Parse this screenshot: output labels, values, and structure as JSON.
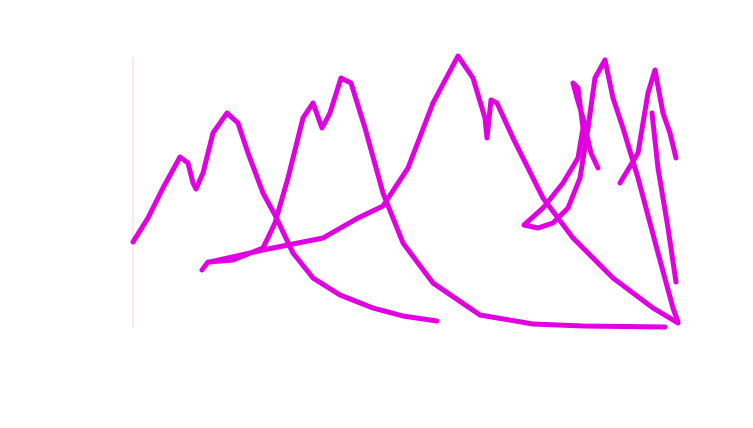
{
  "chart_data": {
    "type": "line",
    "color": "#e000e0",
    "xlim": [
      0,
      545
    ],
    "ylim": [
      0,
      280
    ],
    "x": [
      0,
      15,
      30,
      47,
      55,
      60,
      63,
      70,
      80,
      94,
      105,
      115,
      130,
      142,
      160,
      180,
      207,
      240,
      270,
      304,
      null,
      69,
      75,
      100,
      130,
      142,
      155,
      170,
      180,
      189,
      197,
      208,
      218,
      232,
      250,
      270,
      300,
      347,
      400,
      450,
      532,
      null,
      77,
      130,
      190,
      225,
      250,
      275,
      300,
      325,
      340,
      352,
      354,
      358,
      364,
      380,
      410,
      440,
      480,
      520,
      545,
      null,
      545,
      540,
      525,
      505,
      490,
      480,
      472,
      462,
      455,
      447,
      435,
      420,
      405,
      391,
      null,
      391,
      410,
      430,
      445,
      450,
      445,
      440,
      444,
      450,
      458,
      465,
      null,
      487,
      505,
      515,
      522,
      530,
      537,
      543,
      null,
      519,
      525,
      535,
      543
    ],
    "values": [
      86,
      110,
      140,
      171,
      165,
      145,
      139,
      155,
      195,
      215,
      205,
      175,
      135,
      113,
      75,
      50,
      33,
      20,
      12,
      7,
      null,
      58,
      66,
      68,
      80,
      105,
      150,
      210,
      225,
      200,
      215,
      250,
      245,
      200,
      135,
      85,
      45,
      13,
      4,
      2,
      1,
      null,
      66,
      78,
      90,
      110,
      122,
      160,
      225,
      272,
      250,
      210,
      190,
      228,
      225,
      190,
      130,
      90,
      50,
      20,
      5,
      null,
      6,
      20,
      75,
      150,
      200,
      230,
      268,
      250,
      200,
      150,
      120,
      105,
      100,
      103,
      null,
      103,
      120,
      145,
      170,
      200,
      240,
      245,
      230,
      210,
      175,
      160,
      null,
      145,
      175,
      235,
      258,
      215,
      195,
      170,
      null,
      215,
      160,
      100,
      46
    ]
  }
}
